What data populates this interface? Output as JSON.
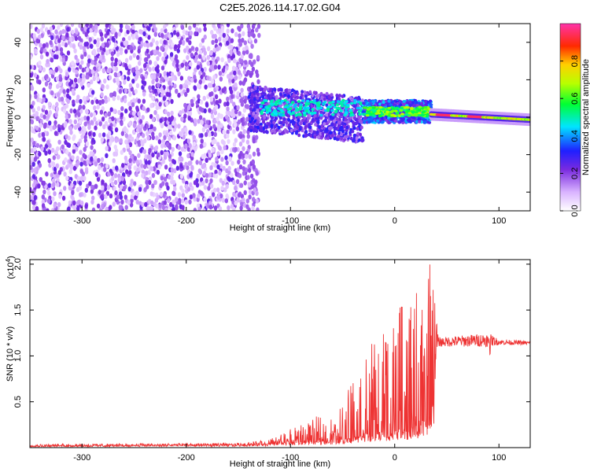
{
  "chart_data": [
    {
      "type": "heatmap",
      "title": "C2E5.2026.114.17.02.G04",
      "xlabel": "Height of straight line (km)",
      "ylabel": "Frequency (Hz)",
      "xlim": [
        -350,
        130
      ],
      "ylim": [
        -50,
        50
      ],
      "x_ticks": [
        -300,
        -200,
        -100,
        0,
        100
      ],
      "x_tick_labels": [
        "-300",
        "-200",
        "-100",
        "0",
        "100"
      ],
      "y_ticks": [
        -40,
        -20,
        0,
        20,
        40
      ],
      "y_tick_labels": [
        "-40",
        "-20",
        "0",
        "20",
        "40"
      ],
      "colorbar": {
        "label": "Normalized spectral amplitude",
        "range": [
          0.0,
          1.0
        ],
        "ticks": [
          0.0,
          0.2,
          0.4,
          0.6,
          0.8
        ],
        "tick_labels": [
          "0.0",
          "0.2",
          "0.4",
          "0.6",
          "0.8"
        ]
      },
      "regions": [
        {
          "name": "noise",
          "x_range": [
            -350,
            -130
          ],
          "freq_range": [
            -50,
            50
          ],
          "amplitude": 0.1
        },
        {
          "name": "transition",
          "x_range": [
            -140,
            -30
          ],
          "freq_center": 5,
          "freq_spread": 12,
          "amplitude": 0.25
        },
        {
          "name": "signal",
          "x_range": [
            -30,
            35
          ],
          "freq_center": 3,
          "freq_spread": 6,
          "amplitude": 0.45
        },
        {
          "name": "strong-line",
          "x_range": [
            35,
            130
          ],
          "freq_center": 0,
          "freq_spread": 3,
          "amplitude": 1.0
        }
      ]
    },
    {
      "type": "line",
      "xlabel": "Height of straight line (km)",
      "ylabel": "SNR (10 * v/v)",
      "scale_label": "(x10",
      "scale_exp": "4",
      "scale_tail": ")",
      "xlim": [
        -350,
        130
      ],
      "ylim": [
        0,
        20500
      ],
      "x_ticks": [
        -300,
        -200,
        -100,
        0,
        100
      ],
      "x_tick_labels": [
        "-300",
        "-200",
        "-100",
        "0",
        "100"
      ],
      "y_ticks": [
        5000,
        10000,
        15000,
        20000
      ],
      "y_tick_labels": [
        "0.5",
        "1.0",
        "1.5",
        "2.0"
      ],
      "color": "#ee3333",
      "series": [
        {
          "name": "SNR",
          "envelope": [
            {
              "x": -350,
              "base": 200,
              "peak": 400
            },
            {
              "x": -150,
              "base": 300,
              "peak": 500
            },
            {
              "x": -120,
              "base": 400,
              "peak": 900
            },
            {
              "x": -100,
              "base": 600,
              "peak": 2000
            },
            {
              "x": -80,
              "base": 700,
              "peak": 3000
            },
            {
              "x": -70,
              "base": 800,
              "peak": 3800
            },
            {
              "x": -55,
              "base": 900,
              "peak": 3000
            },
            {
              "x": -45,
              "base": 1000,
              "peak": 9000
            },
            {
              "x": -30,
              "base": 1500,
              "peak": 10500
            },
            {
              "x": -10,
              "base": 1800,
              "peak": 13500
            },
            {
              "x": 10,
              "base": 2000,
              "peak": 16000
            },
            {
              "x": 25,
              "base": 2500,
              "peak": 18500
            },
            {
              "x": 35,
              "base": 3000,
              "peak": 20500
            },
            {
              "x": 42,
              "base": 11000,
              "peak": 12000
            },
            {
              "x": 90,
              "base": 11000,
              "peak": 12500
            },
            {
              "x": 100,
              "base": 11200,
              "peak": 11800
            },
            {
              "x": 130,
              "base": 11200,
              "peak": 11600
            }
          ]
        }
      ]
    }
  ]
}
